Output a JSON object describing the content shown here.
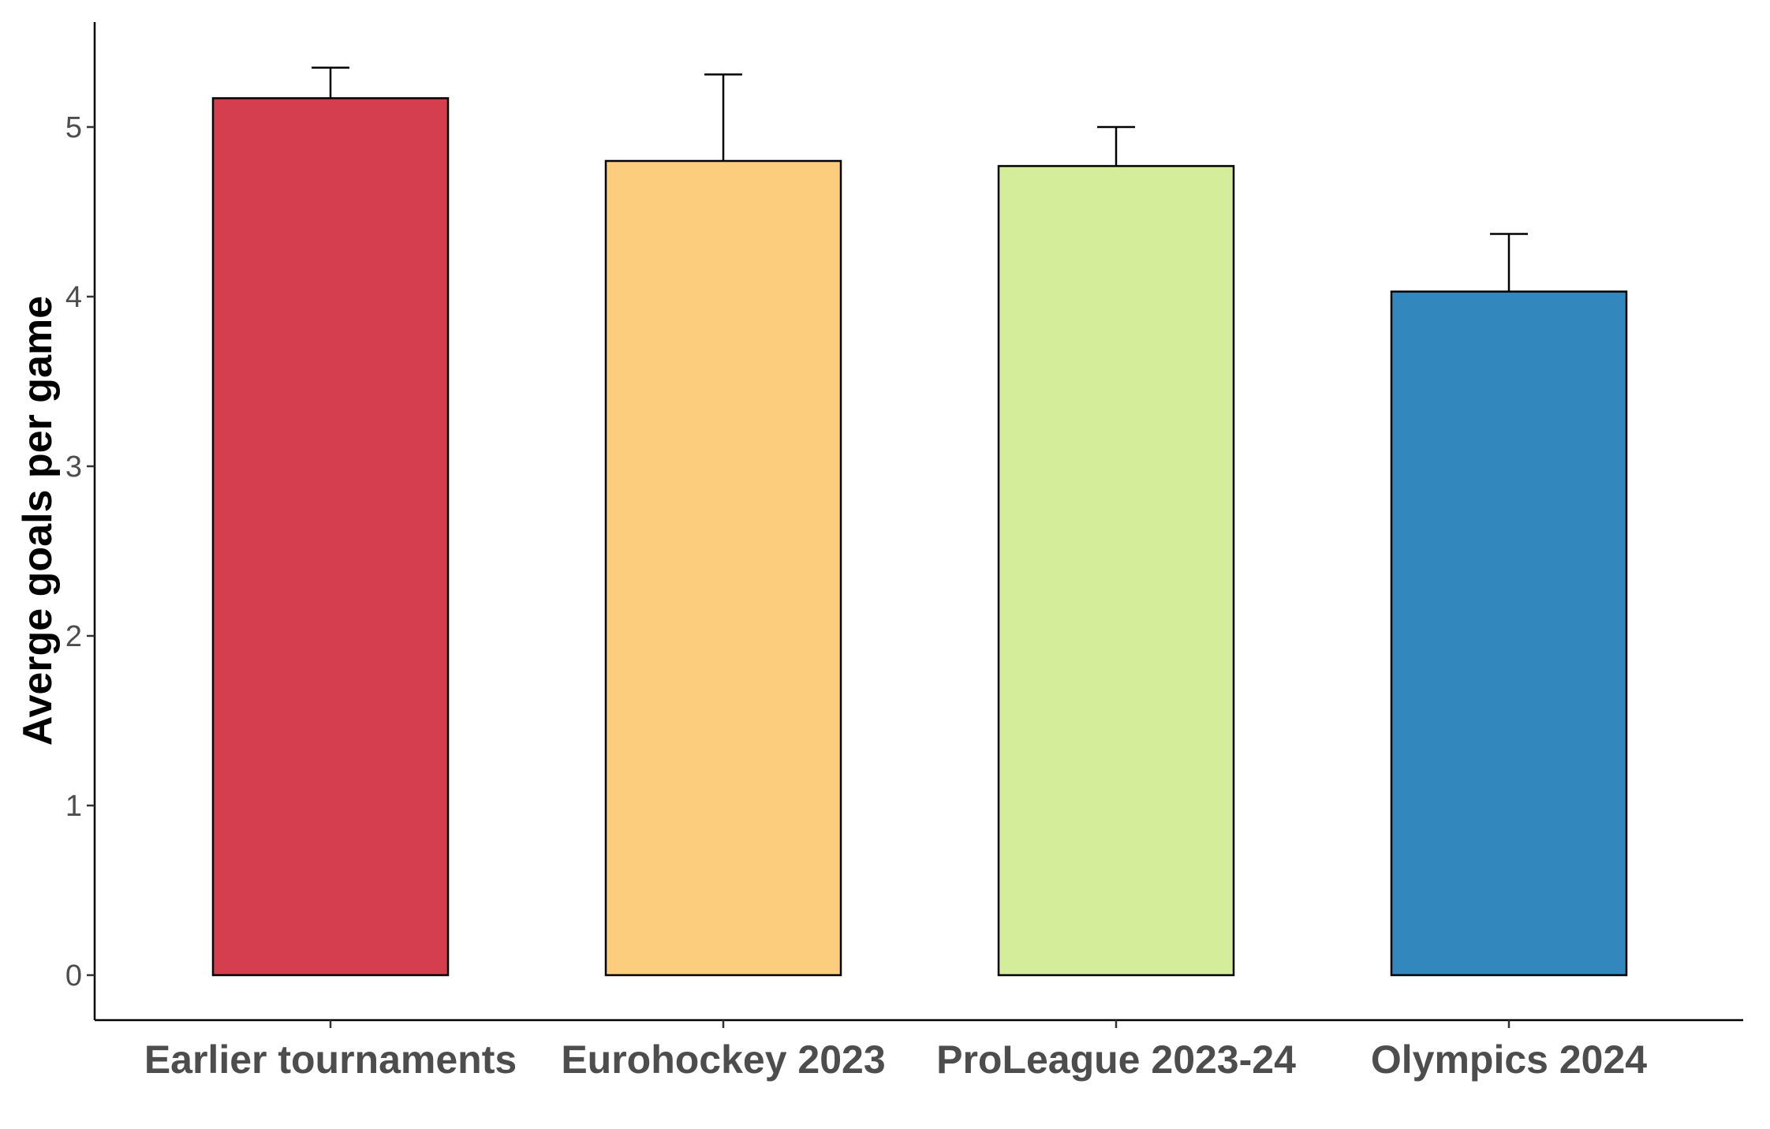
{
  "chart_data": {
    "type": "bar",
    "title": "",
    "xlabel": "",
    "ylabel": "Averge goals per game",
    "categories": [
      "Earlier tournaments",
      "Eurohockey 2023",
      "ProLeague 2023-24",
      "Olympics 2024"
    ],
    "values": [
      5.17,
      4.8,
      4.77,
      4.03
    ],
    "error_upper": [
      5.35,
      5.31,
      5.0,
      4.37
    ],
    "colors": [
      "#d53e4f",
      "#fbcd7c",
      "#d4ed9b",
      "#3288bd"
    ],
    "ylim": [
      0,
      5.6
    ],
    "yticks": [
      "0",
      "1",
      "2",
      "3",
      "4",
      "5"
    ],
    "grid": false,
    "legend": "none"
  }
}
